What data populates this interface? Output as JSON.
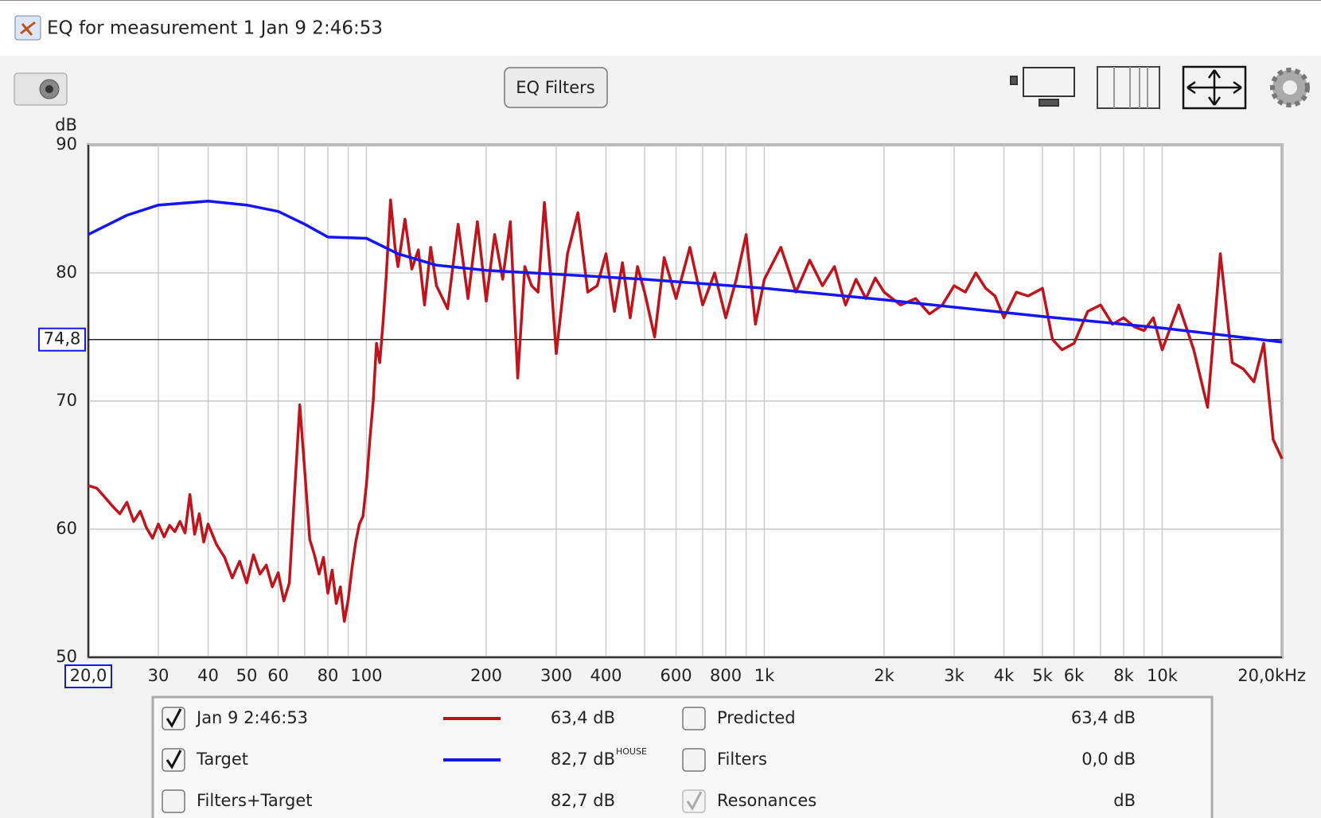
{
  "window": {
    "title": "EQ for measurement 1 Jan 9 2:46:53"
  },
  "toolbar": {
    "button": "EQ Filters"
  },
  "chart_data": {
    "type": "line",
    "xscale": "log",
    "ylabel": "dB",
    "xlim": [
      20,
      20000
    ],
    "ylim": [
      50,
      90
    ],
    "xticks": [
      30,
      40,
      50,
      60,
      80,
      100,
      200,
      300,
      400,
      600,
      800,
      {
        "value": 1000,
        "label": "1k"
      },
      {
        "value": 2000,
        "label": "2k"
      },
      {
        "value": 3000,
        "label": "3k"
      },
      {
        "value": 4000,
        "label": "4k"
      },
      {
        "value": 5000,
        "label": "5k"
      },
      {
        "value": 6000,
        "label": "6k"
      },
      {
        "value": 8000,
        "label": "8k"
      },
      {
        "value": 10000,
        "label": "10k"
      },
      {
        "value": 20000,
        "label": "20,0kHz"
      }
    ],
    "xgrid_minor": [
      70,
      90,
      500,
      700,
      900,
      7000,
      9000
    ],
    "yticks": [
      50,
      60,
      70,
      80,
      90
    ],
    "grid": true,
    "cursor": {
      "x": {
        "value": 20,
        "label": "20,0"
      },
      "y": {
        "value": 74.8,
        "label": "74,8"
      },
      "color": "#1414ff"
    },
    "series": [
      {
        "name": "Jan 9 2:46:53",
        "color": "#c0141c",
        "x": [
          20,
          21,
          22,
          23,
          24,
          25,
          26,
          27,
          28,
          29,
          30,
          31,
          32,
          33,
          34,
          35,
          36,
          37,
          38,
          39,
          40,
          42,
          44,
          46,
          48,
          50,
          52,
          54,
          56,
          58,
          60,
          62,
          64,
          66,
          68,
          70,
          72,
          74,
          76,
          78,
          80,
          82,
          84,
          86,
          88,
          90,
          92,
          94,
          96,
          98,
          100,
          102,
          104,
          106,
          108,
          110,
          112,
          115,
          118,
          120,
          125,
          130,
          135,
          140,
          145,
          150,
          160,
          170,
          180,
          190,
          200,
          210,
          220,
          230,
          240,
          250,
          260,
          270,
          280,
          290,
          300,
          320,
          340,
          360,
          380,
          400,
          420,
          440,
          460,
          480,
          500,
          530,
          560,
          600,
          650,
          700,
          750,
          800,
          850,
          900,
          950,
          1000,
          1100,
          1200,
          1300,
          1400,
          1500,
          1600,
          1700,
          1800,
          1900,
          2000,
          2200,
          2400,
          2600,
          2800,
          3000,
          3200,
          3400,
          3600,
          3800,
          4000,
          4300,
          4600,
          5000,
          5300,
          5600,
          6000,
          6500,
          7000,
          7500,
          8000,
          8500,
          9000,
          9500,
          10000,
          11000,
          12000,
          13000,
          14000,
          15000,
          16000,
          17000,
          18000,
          19000,
          20000
        ],
        "values": [
          63.4,
          63.2,
          62.5,
          61.8,
          61.2,
          62.1,
          60.6,
          61.4,
          60.1,
          59.3,
          60.4,
          59.4,
          60.3,
          59.8,
          60.6,
          59.7,
          62.7,
          59.6,
          61.2,
          59.0,
          60.4,
          58.8,
          57.8,
          56.2,
          57.5,
          55.8,
          58.0,
          56.5,
          57.2,
          55.5,
          56.6,
          54.4,
          55.8,
          63.0,
          69.7,
          64.5,
          59.2,
          58.0,
          56.5,
          57.8,
          55.0,
          56.8,
          54.2,
          55.5,
          52.8,
          54.5,
          57.0,
          59.0,
          60.4,
          61.0,
          63.5,
          67.0,
          70.0,
          74.5,
          73.0,
          76.0,
          79.5,
          85.7,
          82.0,
          80.5,
          84.2,
          80.3,
          81.8,
          77.5,
          82.0,
          79.0,
          77.2,
          83.8,
          78.0,
          84.0,
          77.8,
          83.0,
          79.5,
          84.0,
          71.8,
          80.5,
          79.0,
          78.5,
          85.5,
          80.0,
          73.7,
          81.5,
          84.7,
          78.5,
          79.0,
          81.5,
          77.0,
          80.8,
          76.5,
          80.5,
          78.5,
          75.0,
          81.2,
          78.0,
          82.0,
          77.5,
          80.0,
          76.5,
          79.5,
          83.0,
          76.0,
          79.5,
          82.0,
          78.5,
          81.0,
          79.0,
          80.5,
          77.5,
          79.5,
          78.0,
          79.6,
          78.5,
          77.5,
          78.0,
          76.8,
          77.5,
          79.0,
          78.5,
          80.0,
          78.8,
          78.2,
          76.5,
          78.5,
          78.2,
          78.8,
          74.8,
          74.0,
          74.5,
          77.0,
          77.5,
          76.0,
          76.5,
          75.8,
          75.5,
          76.5,
          74.0,
          77.5,
          74.0,
          69.5,
          81.5,
          73.0,
          72.5,
          71.5,
          74.5,
          67.0,
          65.5
        ]
      },
      {
        "name": "Target",
        "color": "#1414ff",
        "x": [
          20,
          25,
          30,
          40,
          50,
          60,
          70,
          80,
          100,
          120,
          150,
          200,
          300,
          500,
          1000,
          2000,
          5000,
          10000,
          20000
        ],
        "values": [
          83,
          84.5,
          85.3,
          85.6,
          85.3,
          84.8,
          83.8,
          82.8,
          82.7,
          81.5,
          80.6,
          80.2,
          79.9,
          79.5,
          78.8,
          77.9,
          76.6,
          75.7,
          74.6
        ]
      }
    ]
  },
  "legend_panel": {
    "left": [
      {
        "checked": true,
        "value": "63,4 dB"
      },
      {
        "checked": true,
        "value": "82,7 dB",
        "note": "HOUSE"
      },
      {
        "checked": false,
        "label": "Filters+Target",
        "value": "82,7 dB",
        "color": "#1a9a9a"
      }
    ],
    "right": [
      {
        "checked": false,
        "label": "Predicted",
        "value": "63,4 dB",
        "color": "#d01010"
      },
      {
        "checked": false,
        "label": "Filters",
        "value": "0,0 dB",
        "color": "#20c0d0"
      },
      {
        "checked": true,
        "disabled": true,
        "label": "Resonances",
        "value": "dB",
        "color": "#a8a8a8"
      }
    ]
  }
}
